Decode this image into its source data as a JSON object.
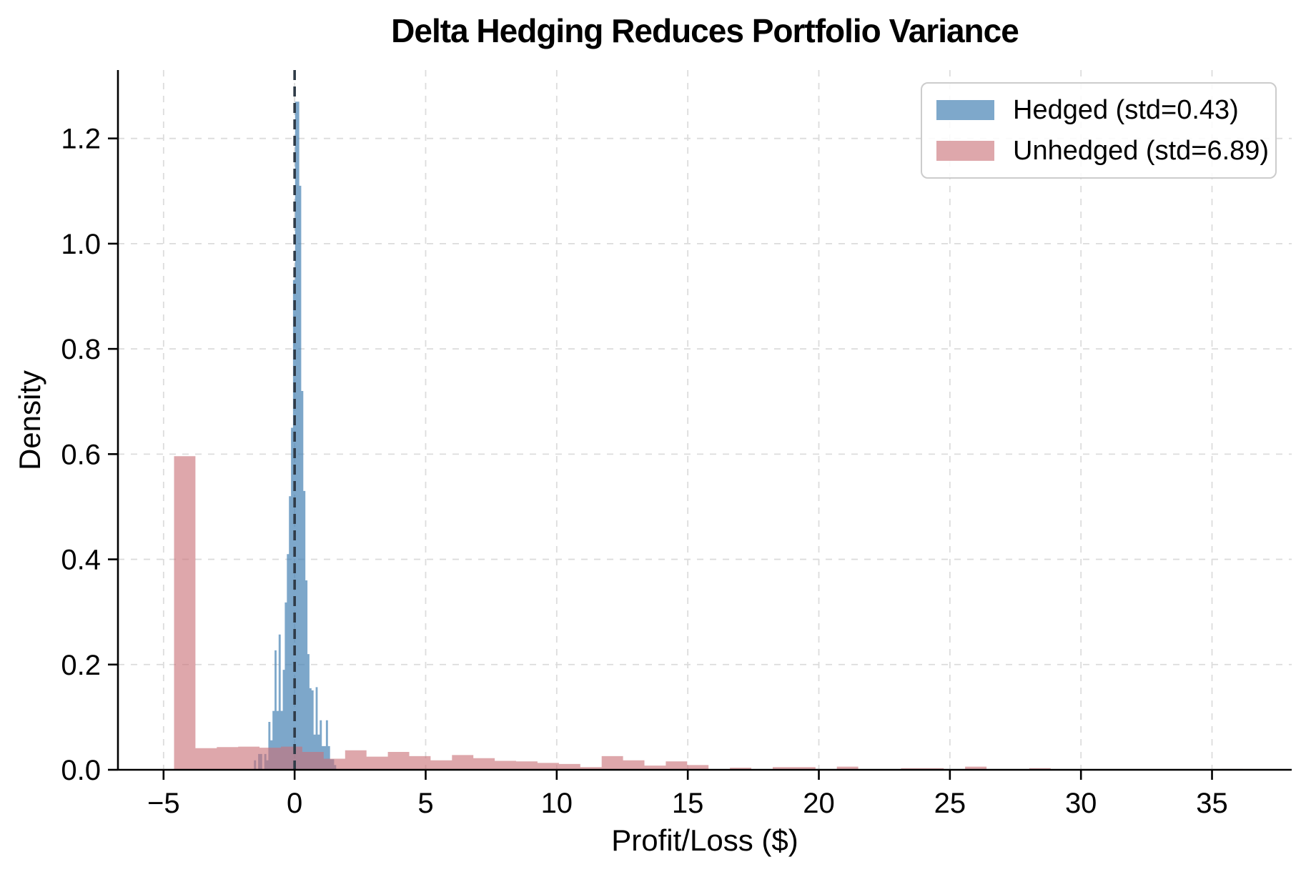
{
  "chart_data": {
    "type": "bar",
    "subtype": "overlaid-density-histograms",
    "title": "Delta Hedging Reduces Portfolio Variance",
    "xlabel": "Profit/Loss ($)",
    "ylabel": "Density",
    "xlim": [
      -6.74,
      38.04
    ],
    "ylim": [
      0,
      1.33
    ],
    "xticks": [
      -5,
      0,
      5,
      10,
      15,
      20,
      25,
      30,
      35
    ],
    "yticks": [
      0.0,
      0.2,
      0.4,
      0.6,
      0.8,
      1.0,
      1.2
    ],
    "grid": true,
    "grid_style": "dashed",
    "grid_color": "#dcdcdc",
    "reference_line": {
      "x": 0,
      "style": "dashed",
      "color": "#2F3B47"
    },
    "legend_position": "upper right",
    "legend": {
      "entries": [
        {
          "label": "Hedged (std=0.43)",
          "swatch": "#7EA8CB"
        },
        {
          "label": "Unhedged (std=6.89)",
          "swatch": "#DEA7AB"
        }
      ]
    },
    "series": [
      {
        "name": "Hedged (std=0.43)",
        "color": "#4682B4",
        "opacity": 0.7,
        "z": 1,
        "bin_start": -1.55,
        "bin_width": 0.0784,
        "densities": [
          0.018,
          0.0,
          0.03,
          0.03,
          0.0,
          0.03,
          0.018,
          0.091,
          0.056,
          0.112,
          0.227,
          0.112,
          0.257,
          0.112,
          0.19,
          0.318,
          0.41,
          0.52,
          0.65,
          0.931,
          1.27,
          1.27,
          1.11,
          0.72,
          0.53,
          0.36,
          0.22,
          0.155,
          0.151,
          0.067,
          0.157,
          0.067,
          0.094,
          0.045,
          0.045,
          0.094,
          0.045,
          0.02,
          0.02,
          0.009
        ]
      },
      {
        "name": "Unhedged (std=6.89)",
        "color": "#C97178",
        "opacity": 0.62,
        "z": 2,
        "bin_start": -4.6,
        "bin_width": 0.8157,
        "densities": [
          0.596,
          0.041,
          0.043,
          0.044,
          0.042,
          0.044,
          0.034,
          0.021,
          0.037,
          0.025,
          0.034,
          0.026,
          0.018,
          0.028,
          0.022,
          0.017,
          0.016,
          0.013,
          0.011,
          0.005,
          0.026,
          0.018,
          0.008,
          0.016,
          0.009,
          0.0,
          0.004,
          0.0,
          0.005,
          0.005,
          0.0,
          0.006,
          0.0,
          0.0,
          0.003,
          0.003,
          0.0,
          0.006,
          0.0,
          0.0,
          0.003,
          0.0,
          0.0,
          0.0,
          0.0,
          0.0,
          0.0,
          0.0,
          0.0,
          0.0015
        ]
      }
    ]
  }
}
